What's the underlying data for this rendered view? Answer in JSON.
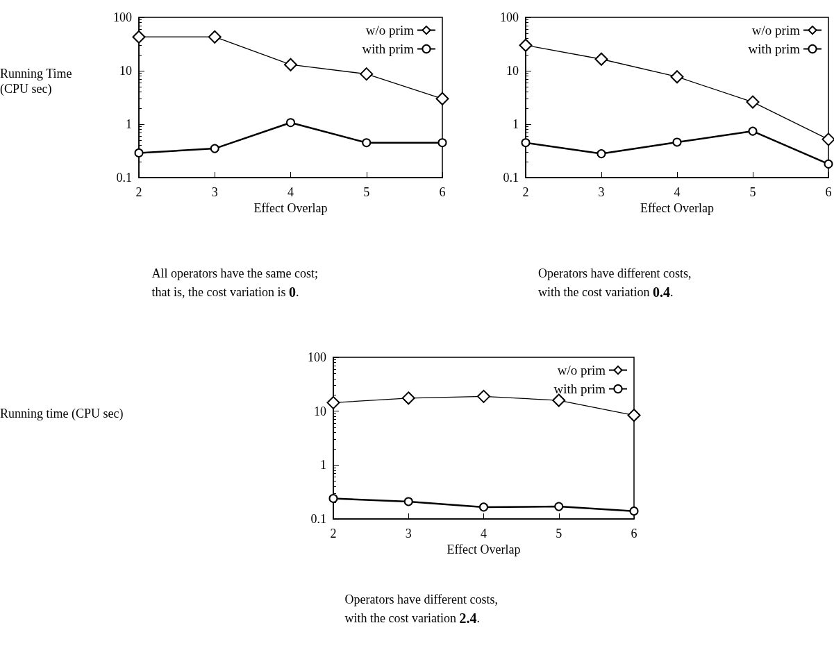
{
  "chart_data": [
    {
      "type": "line",
      "xlabel": "Effect Overlap",
      "ylabel": "Running Time (CPU sec)",
      "x": [
        2,
        3,
        4,
        5,
        6
      ],
      "xlim": [
        2,
        6
      ],
      "xticks": [
        2,
        3,
        4,
        5,
        6
      ],
      "ylim": [
        0.1,
        100
      ],
      "yticks": [
        0.1,
        1,
        10,
        100
      ],
      "log": "y",
      "grid": false,
      "legend": "top right",
      "annotations": [
        "All operators have the same cost;",
        "that is, the cost variation is 0."
      ],
      "series": [
        {
          "name": "w/o prim",
          "color": "#000000",
          "marker": "diamond",
          "values": [
            43,
            43,
            13,
            8.7,
            3.0
          ]
        },
        {
          "name": "with prim",
          "color": "#000000",
          "marker": "circle",
          "values": [
            0.29,
            0.35,
            1.07,
            0.45,
            0.45
          ]
        }
      ]
    },
    {
      "type": "line",
      "xlabel": "Effect Overlap",
      "x": [
        2,
        3,
        4,
        5,
        6
      ],
      "xlim": [
        2,
        6
      ],
      "xticks": [
        2,
        3,
        4,
        5,
        6
      ],
      "ylim": [
        0.1,
        100
      ],
      "yticks": [
        0.1,
        1,
        10,
        100
      ],
      "log": "y",
      "grid": false,
      "legend": "top right",
      "annotations": [
        "Operators have different costs,",
        "with the cost variation 0.4."
      ],
      "series": [
        {
          "name": "w/o prim",
          "color": "#000000",
          "marker": "diamond",
          "values": [
            30,
            16.5,
            7.7,
            2.6,
            0.52
          ]
        },
        {
          "name": "with prim",
          "color": "#000000",
          "marker": "circle",
          "values": [
            0.45,
            0.28,
            0.46,
            0.74,
            0.18
          ]
        }
      ]
    },
    {
      "type": "line",
      "xlabel": "Effect Overlap",
      "ylabel": "Running time (CPU sec)",
      "x": [
        2,
        3,
        4,
        5,
        6
      ],
      "xlim": [
        2,
        6
      ],
      "xticks": [
        2,
        3,
        4,
        5,
        6
      ],
      "ylim": [
        0.1,
        100
      ],
      "yticks": [
        0.1,
        1,
        10,
        100
      ],
      "log": "y",
      "grid": false,
      "legend": "top right",
      "annotations": [
        "Operators have different costs,",
        "with the cost variation 2.4."
      ],
      "series": [
        {
          "name": "w/o prim",
          "color": "#000000",
          "marker": "diamond",
          "values": [
            14.4,
            17.5,
            18.8,
            15.9,
            8.4
          ]
        },
        {
          "name": "with prim",
          "color": "#000000",
          "marker": "circle",
          "values": [
            0.24,
            0.21,
            0.166,
            0.17,
            0.14
          ]
        }
      ]
    }
  ]
}
